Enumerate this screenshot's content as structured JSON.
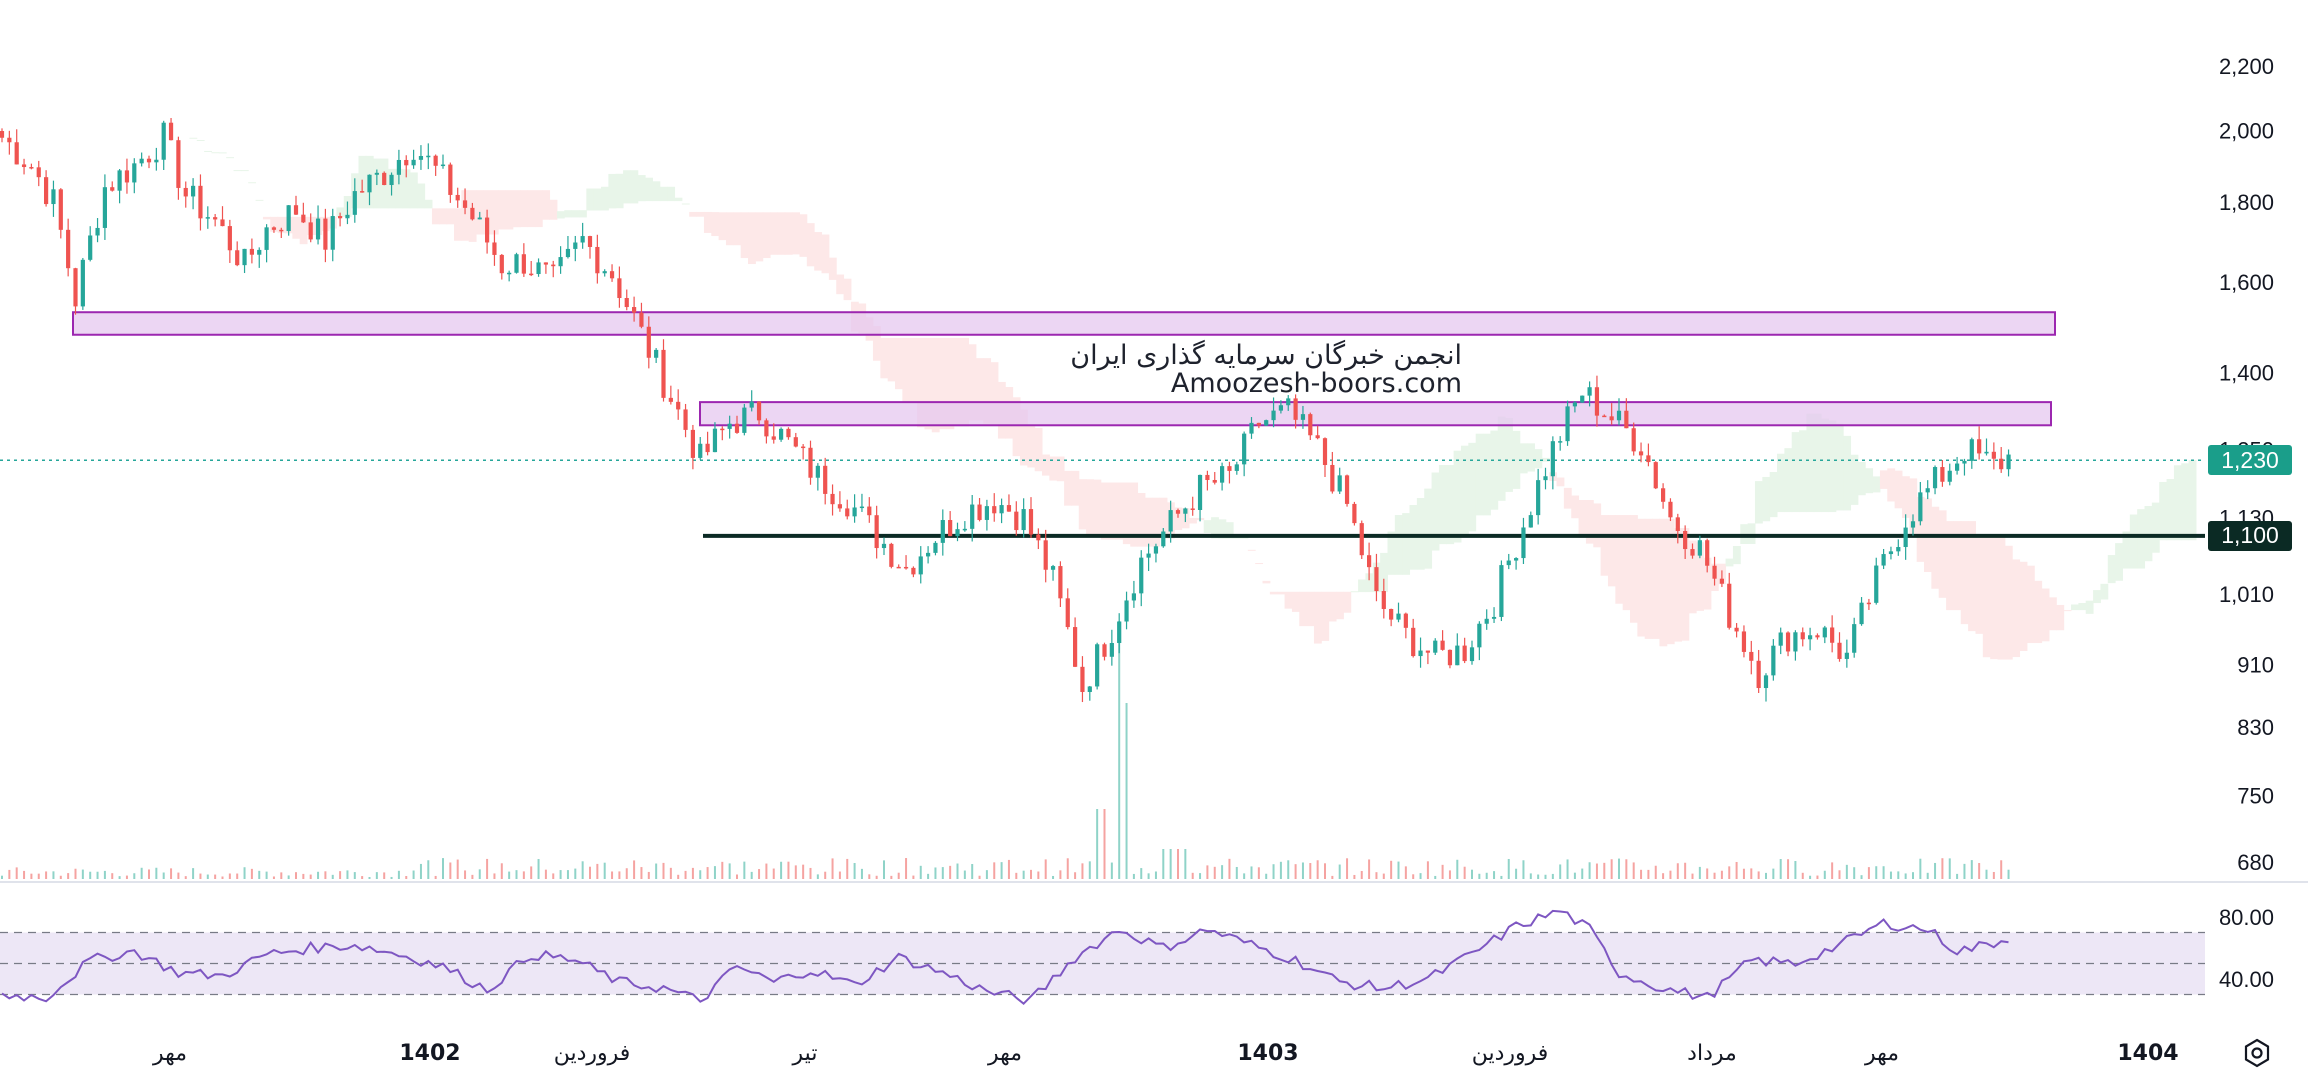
{
  "watermark": {
    "line1": "انجمن خبرگان سرمایه گذاری ایران",
    "line2": "Amoozesh-boors.com"
  },
  "settings_icon": "gear-icon",
  "colors": {
    "up": "#26a69a",
    "down": "#ef5350",
    "zone_fill": "#e6c8ef",
    "zone_stroke": "#9c27b0",
    "support_line": "#0b2a24",
    "last_price_bg": "#1a9e8a",
    "support_tag_bg": "#0b2a24",
    "rsi_line": "#7e57c2",
    "rsi_band": "#ede7f6",
    "cloud_bull": "#e8f5e9",
    "cloud_bear": "#fde8e8"
  },
  "chart_data": [
    {
      "type": "candlestick",
      "price_axis": {
        "scale": "log",
        "ticks": [
          2200,
          2000,
          1800,
          1600,
          1400,
          1250,
          1130,
          1010,
          910,
          830,
          750,
          680
        ]
      },
      "time_axis": {
        "labels": [
          "مهر",
          "1402",
          "فروردین",
          "تیر",
          "مهر",
          "1403",
          "فروردین",
          "مرداد",
          "مهر",
          "1404"
        ],
        "bold": [
          false,
          true,
          false,
          false,
          false,
          true,
          false,
          false,
          false,
          true
        ]
      },
      "last_price": {
        "label": "1,230",
        "value": 1230
      },
      "support_price": {
        "label": "1,100",
        "value": 1100
      },
      "zones": [
        {
          "low": 1480,
          "high": 1530
        },
        {
          "low": 1295,
          "high": 1340
        }
      ],
      "series": [
        {
          "name": "",
          "anchors": [
            [
              0,
              1980
            ],
            [
              4,
              1900
            ],
            [
              7,
              1800
            ],
            [
              10,
              1560
            ],
            [
              14,
              1840
            ],
            [
              18,
              1900
            ],
            [
              22,
              1980
            ],
            [
              25,
              1820
            ],
            [
              29,
              1750
            ],
            [
              33,
              1640
            ],
            [
              36,
              1730
            ],
            [
              40,
              1780
            ],
            [
              44,
              1700
            ],
            [
              48,
              1820
            ],
            [
              52,
              1880
            ],
            [
              56,
              1960
            ],
            [
              60,
              1860
            ],
            [
              64,
              1760
            ],
            [
              68,
              1640
            ],
            [
              71,
              1650
            ],
            [
              75,
              1600
            ],
            [
              79,
              1700
            ],
            [
              83,
              1620
            ],
            [
              87,
              1480
            ],
            [
              91,
              1350
            ],
            [
              95,
              1230
            ],
            [
              99,
              1300
            ],
            [
              103,
              1320
            ],
            [
              107,
              1260
            ],
            [
              111,
              1200
            ],
            [
              115,
              1160
            ],
            [
              119,
              1100
            ],
            [
              123,
              1050
            ],
            [
              127,
              1100
            ],
            [
              131,
              1140
            ],
            [
              135,
              1160
            ],
            [
              139,
              1130
            ],
            [
              143,
              1030
            ],
            [
              147,
              880
            ],
            [
              151,
              960
            ],
            [
              155,
              1060
            ],
            [
              159,
              1120
            ],
            [
              163,
              1180
            ],
            [
              167,
              1200
            ],
            [
              171,
              1300
            ],
            [
              175,
              1320
            ],
            [
              179,
              1250
            ],
            [
              183,
              1150
            ],
            [
              187,
              1000
            ],
            [
              191,
              950
            ],
            [
              195,
              920
            ],
            [
              199,
              930
            ],
            [
              203,
              1000
            ],
            [
              207,
              1120
            ],
            [
              211,
              1250
            ],
            [
              215,
              1360
            ],
            [
              219,
              1310
            ],
            [
              223,
              1260
            ],
            [
              227,
              1130
            ],
            [
              231,
              1080
            ],
            [
              235,
              980
            ],
            [
              239,
              900
            ],
            [
              243,
              950
            ],
            [
              247,
              960
            ],
            [
              251,
              920
            ],
            [
              255,
              1030
            ],
            [
              259,
              1130
            ],
            [
              263,
              1190
            ],
            [
              267,
              1250
            ],
            [
              271,
              1220
            ],
            [
              273,
              1235
            ]
          ]
        }
      ],
      "rsi": {
        "ticks": [
          80.0,
          40.0
        ],
        "tick_labels": [
          "80.00",
          "40.00"
        ],
        "band": [
          30,
          70
        ],
        "mid": 50,
        "anchors": [
          [
            0,
            30
          ],
          [
            6,
            28
          ],
          [
            12,
            52
          ],
          [
            18,
            58
          ],
          [
            24,
            44
          ],
          [
            30,
            42
          ],
          [
            36,
            56
          ],
          [
            42,
            60
          ],
          [
            48,
            62
          ],
          [
            54,
            56
          ],
          [
            60,
            48
          ],
          [
            66,
            33
          ],
          [
            72,
            56
          ],
          [
            78,
            52
          ],
          [
            84,
            38
          ],
          [
            90,
            34
          ],
          [
            95,
            26
          ],
          [
            100,
            48
          ],
          [
            105,
            38
          ],
          [
            110,
            46
          ],
          [
            116,
            36
          ],
          [
            122,
            54
          ],
          [
            128,
            44
          ],
          [
            134,
            32
          ],
          [
            140,
            26
          ],
          [
            146,
            54
          ],
          [
            152,
            72
          ],
          [
            158,
            60
          ],
          [
            164,
            72
          ],
          [
            170,
            62
          ],
          [
            176,
            52
          ],
          [
            182,
            38
          ],
          [
            188,
            34
          ],
          [
            194,
            40
          ],
          [
            200,
            56
          ],
          [
            206,
            74
          ],
          [
            212,
            84
          ],
          [
            216,
            72
          ],
          [
            220,
            44
          ],
          [
            226,
            34
          ],
          [
            232,
            28
          ],
          [
            238,
            52
          ],
          [
            244,
            50
          ],
          [
            250,
            62
          ],
          [
            256,
            76
          ],
          [
            262,
            72
          ],
          [
            266,
            58
          ],
          [
            270,
            62
          ],
          [
            273,
            66
          ]
        ]
      }
    }
  ]
}
